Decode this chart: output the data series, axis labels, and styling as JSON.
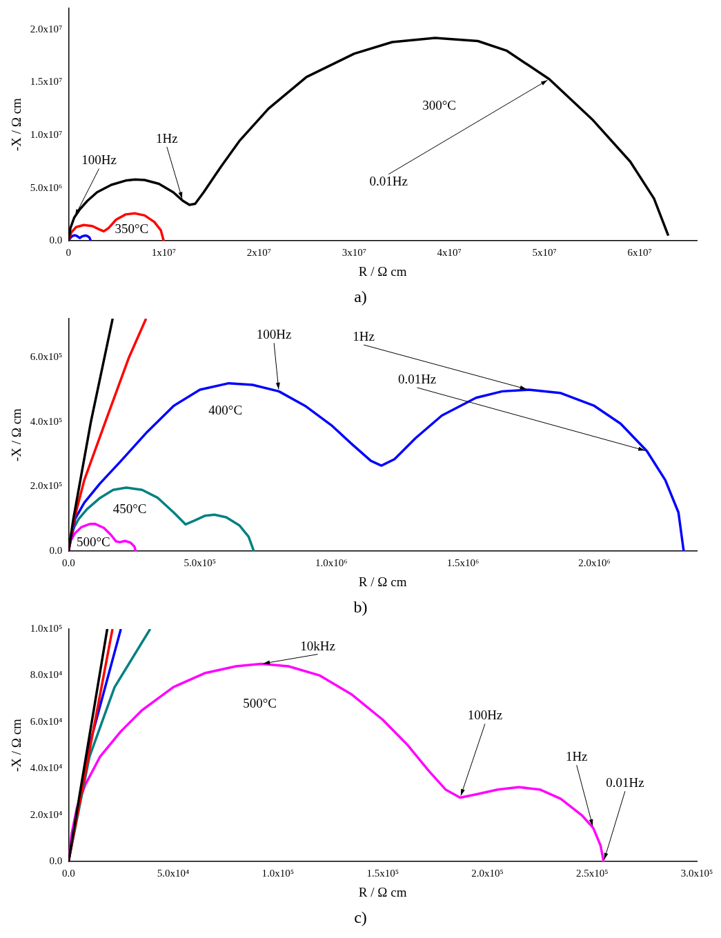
{
  "chart_data": [
    {
      "type": "line",
      "xlabel": "R / Ω cm",
      "ylabel": "-X / Ω cm",
      "xlim": [
        0,
        66000000
      ],
      "ylim": [
        0,
        22000000
      ],
      "xticks": [
        {
          "value": 0,
          "label": "0"
        },
        {
          "value": 10000000,
          "label": "1x10⁷"
        },
        {
          "value": 20000000,
          "label": "2x10⁷"
        },
        {
          "value": 30000000,
          "label": "3x10⁷"
        },
        {
          "value": 40000000,
          "label": "4x10⁷"
        },
        {
          "value": 50000000,
          "label": "5x10⁷"
        },
        {
          "value": 60000000,
          "label": "6x10⁷"
        }
      ],
      "yticks": [
        {
          "value": 0,
          "label": "0.0"
        },
        {
          "value": 5000000,
          "label": "5.0x10⁶"
        },
        {
          "value": 10000000,
          "label": "1.0x10⁷"
        },
        {
          "value": 15000000,
          "label": "1.5x10⁷"
        },
        {
          "value": 20000000,
          "label": "2.0x10⁷"
        }
      ],
      "series": [
        {
          "color": "#000000",
          "x": [
            0,
            200000,
            600000,
            1200000,
            2000000,
            3000000,
            4500000,
            6000000,
            7000000,
            8000000,
            9500000,
            11000000,
            12000000,
            12700000,
            13300000,
            14200000,
            16000000,
            18000000,
            21000000,
            25000000,
            30000000,
            34000000,
            38500000,
            43000000,
            46000000,
            50500000,
            55000000,
            59000000,
            61500000,
            63000000
          ],
          "values": [
            0,
            1200000,
            2200000,
            3000000,
            3800000,
            4600000,
            5300000,
            5700000,
            5800000,
            5750000,
            5400000,
            4600000,
            3800000,
            3400000,
            3500000,
            4600000,
            7000000,
            9500000,
            12500000,
            15500000,
            17700000,
            18800000,
            19200000,
            18900000,
            18000000,
            15300000,
            11500000,
            7500000,
            4000000,
            500000
          ]
        },
        {
          "color": "#ff0000",
          "x": [
            0,
            300000,
            800000,
            1600000,
            2500000,
            3200000,
            3700000,
            4200000,
            5000000,
            6000000,
            7000000,
            8000000,
            9000000,
            9700000,
            10000000
          ],
          "values": [
            0,
            800000,
            1300000,
            1500000,
            1400000,
            1100000,
            900000,
            1200000,
            2000000,
            2500000,
            2600000,
            2400000,
            1800000,
            1000000,
            0
          ]
        },
        {
          "color": "#0000ff",
          "x": [
            0,
            200000,
            400000,
            610000,
            800000,
            1000000,
            1190000,
            1400000,
            1750000,
            2000000,
            2200000,
            2340000
          ],
          "values": [
            0,
            280000,
            450000,
            520000,
            500000,
            390000,
            270000,
            410000,
            500000,
            450000,
            310000,
            0
          ]
        }
      ],
      "annotations": [
        "300°C",
        {
          "text": "1Hz",
          "x": 12000000,
          "y": 3800000
        },
        {
          "text": "100Hz",
          "x": 600000,
          "y": 2200000
        },
        {
          "text": "0.01Hz",
          "x": 50500000,
          "y": 15300000
        },
        {
          "text": "350°C",
          "x": 7000000,
          "y": 2600000
        },
        "a)"
      ]
    },
    {
      "type": "line",
      "xlabel": "R / Ω cm",
      "ylabel": "-X / Ω cm",
      "xlim": [
        0,
        2390000
      ],
      "ylim": [
        0,
        720000
      ],
      "xticks": [
        {
          "value": 0,
          "label": "0.0"
        },
        {
          "value": 500000,
          "label": "5.0x10⁵"
        },
        {
          "value": 1000000,
          "label": "1.0x10⁶"
        },
        {
          "value": 1500000,
          "label": "1.5x10⁶"
        },
        {
          "value": 2000000,
          "label": "2.0x10⁶"
        }
      ],
      "yticks": [
        {
          "value": 0,
          "label": "0.0"
        },
        {
          "value": 200000,
          "label": "2.0x10⁵"
        },
        {
          "value": 400000,
          "label": "4.0x10⁵"
        },
        {
          "value": 600000,
          "label": "6.0x10⁵"
        }
      ],
      "series": [
        {
          "color": "#000000",
          "x": [
            0,
            18500,
            85000,
            168000
          ],
          "values": [
            0,
            100000,
            400000,
            720000
          ]
        },
        {
          "color": "#ff0000",
          "x": [
            0,
            22000,
            60000,
            140000,
            230000,
            295000
          ],
          "values": [
            0,
            100000,
            220000,
            400000,
            600000,
            720000
          ]
        },
        {
          "color": "#0000ff",
          "x": [
            0,
            25000,
            60000,
            120000,
            200000,
            300000,
            400000,
            500000,
            610000,
            700000,
            800000,
            900000,
            1000000,
            1080000,
            1150000,
            1190000,
            1240000,
            1320000,
            1420000,
            1550000,
            1650000,
            1750000,
            1870000,
            2000000,
            2100000,
            2200000,
            2270000,
            2320000,
            2340000
          ],
          "values": [
            0,
            100000,
            150000,
            210000,
            280000,
            370000,
            450000,
            500000,
            520000,
            515000,
            495000,
            450000,
            390000,
            330000,
            280000,
            265000,
            285000,
            350000,
            420000,
            475000,
            495000,
            500000,
            490000,
            450000,
            395000,
            310000,
            220000,
            120000,
            0
          ]
        },
        {
          "color": "#008080",
          "x": [
            0,
            10000,
            22000,
            39000,
            70000,
            120000,
            170000,
            220000,
            280000,
            340000,
            400000,
            445000,
            480000,
            520000,
            555000,
            600000,
            650000,
            685000,
            705000
          ],
          "values": [
            0,
            45000,
            75000,
            100000,
            130000,
            165000,
            190000,
            197000,
            190000,
            165000,
            120000,
            83000,
            95000,
            110000,
            113000,
            105000,
            80000,
            45000,
            0
          ]
        },
        {
          "color": "#ff00ff",
          "x": [
            0,
            8000,
            25000,
            50000,
            80000,
            100000,
            135000,
            162000,
            180000,
            195000,
            215000,
            235000,
            250500,
            255500
          ],
          "values": [
            0,
            33000,
            56000,
            75000,
            84000,
            85000,
            72000,
            50000,
            31000,
            28000,
            32000,
            27000,
            15000,
            0
          ]
        }
      ],
      "annotations": [
        {
          "text": "100Hz",
          "x": 800000,
          "y": 495000
        },
        {
          "text": "1Hz",
          "x": 1750000,
          "y": 500000
        },
        {
          "text": "0.01Hz",
          "x": 2200000,
          "y": 310000
        },
        {
          "text": "400°C",
          "x": 610000,
          "y": 520000
        },
        {
          "text": "450°C",
          "x": 220000,
          "y": 197000
        },
        {
          "text": "500°C",
          "x": 100000,
          "y": 85000
        },
        "b)"
      ]
    },
    {
      "type": "line",
      "xlabel": "R / Ω cm",
      "ylabel": "-X / Ω cm",
      "xlim": [
        0,
        300000
      ],
      "ylim": [
        0,
        100000
      ],
      "xticks": [
        {
          "value": 0,
          "label": "0.0"
        },
        {
          "value": 50000,
          "label": "5.0x10⁴"
        },
        {
          "value": 100000,
          "label": "1.0x10⁵"
        },
        {
          "value": 150000,
          "label": "1.5x10⁵"
        },
        {
          "value": 200000,
          "label": "2.0x10⁵"
        },
        {
          "value": 250000,
          "label": "2.5x10⁵"
        },
        {
          "value": 300000,
          "label": "3.0x10⁵"
        }
      ],
      "yticks": [
        {
          "value": 0,
          "label": "0.0"
        },
        {
          "value": 20000,
          "label": "2.0x10⁴"
        },
        {
          "value": 40000,
          "label": "4.0x10⁴"
        },
        {
          "value": 60000,
          "label": "6.0x10⁴"
        },
        {
          "value": 80000,
          "label": "8.0x10⁴"
        },
        {
          "value": 100000,
          "label": "1.0x10⁵"
        }
      ],
      "series": [
        {
          "color": "#000000",
          "x": [
            0,
            18500
          ],
          "values": [
            0,
            100000
          ]
        },
        {
          "color": "#ff0000",
          "x": [
            0,
            21000
          ],
          "values": [
            0,
            100000
          ]
        },
        {
          "color": "#0000ff",
          "x": [
            0,
            10000,
            25000
          ],
          "values": [
            0,
            50000,
            100000
          ]
        },
        {
          "color": "#008080",
          "x": [
            0,
            10000,
            22000,
            39000
          ],
          "values": [
            0,
            45000,
            75000,
            100000
          ]
        },
        {
          "color": "#ff00ff",
          "x": [
            0,
            1500,
            4000,
            8000,
            15000,
            25000,
            35000,
            50000,
            65000,
            80000,
            92000,
            105000,
            120000,
            135000,
            150000,
            162000,
            172000,
            180000,
            187000,
            195000,
            205000,
            215000,
            225000,
            235000,
            245000,
            250500,
            254000,
            255500
          ],
          "values": [
            0,
            12000,
            23000,
            33000,
            45000,
            56000,
            65000,
            75000,
            81000,
            84000,
            85000,
            84000,
            80000,
            72000,
            61000,
            50000,
            39000,
            31000,
            27500,
            29000,
            31000,
            32000,
            31000,
            27000,
            20000,
            14500,
            7000,
            0
          ]
        }
      ],
      "annotations": [
        {
          "text": "10kHz",
          "x": 92000,
          "y": 85000
        },
        {
          "text": "500°C",
          "x": 92000,
          "y": 85000
        },
        {
          "text": "100Hz",
          "x": 187000,
          "y": 27500
        },
        {
          "text": "1Hz",
          "x": 250500,
          "y": 14500
        },
        {
          "text": "0.01Hz",
          "x": 255500,
          "y": 0
        },
        "c)"
      ]
    }
  ]
}
